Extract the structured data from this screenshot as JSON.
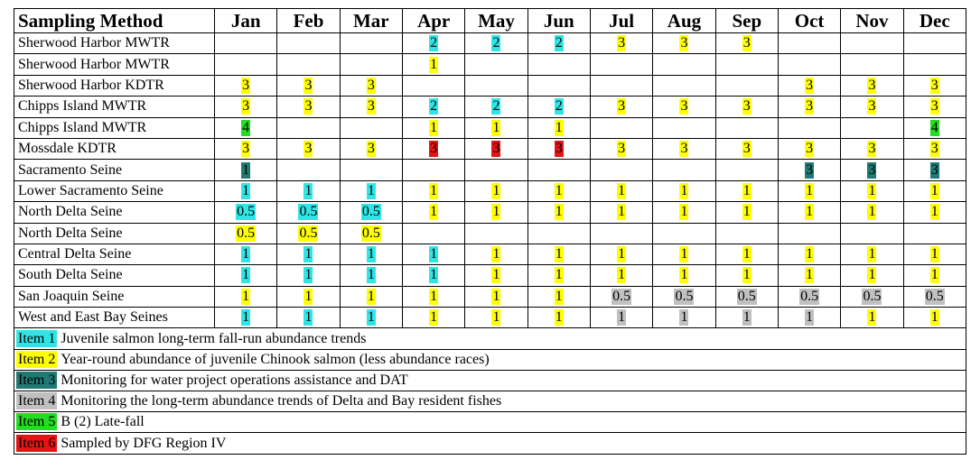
{
  "colors": {
    "1": "#2ee6e6",
    "2": "#ffff00",
    "3": "#1f7a74",
    "4": "#c0c0c0",
    "5": "#22dd22",
    "6": "#e61515"
  },
  "header": {
    "method": "Sampling Method",
    "months": [
      "Jan",
      "Feb",
      "Mar",
      "Apr",
      "May",
      "Jun",
      "Jul",
      "Aug",
      "Sep",
      "Oct",
      "Nov",
      "Dec"
    ]
  },
  "rows": [
    {
      "method": "Sherwood Harbor MWTR",
      "cells": [
        null,
        null,
        null,
        {
          "v": "2",
          "c": 1
        },
        {
          "v": "2",
          "c": 1
        },
        {
          "v": "2",
          "c": 1
        },
        {
          "v": "3",
          "c": 2
        },
        {
          "v": "3",
          "c": 2
        },
        {
          "v": "3",
          "c": 2
        },
        null,
        null,
        null
      ]
    },
    {
      "method": "Sherwood Harbor MWTR",
      "cells": [
        null,
        null,
        null,
        {
          "v": "1",
          "c": 2
        },
        null,
        null,
        null,
        null,
        null,
        null,
        null,
        null
      ]
    },
    {
      "method": "Sherwood Harbor KDTR",
      "cells": [
        {
          "v": "3",
          "c": 2
        },
        {
          "v": "3",
          "c": 2
        },
        {
          "v": "3",
          "c": 2
        },
        null,
        null,
        null,
        null,
        null,
        null,
        {
          "v": "3",
          "c": 2
        },
        {
          "v": "3",
          "c": 2
        },
        {
          "v": "3",
          "c": 2
        }
      ]
    },
    {
      "method": "Chipps Island MWTR",
      "cells": [
        {
          "v": "3",
          "c": 2
        },
        {
          "v": "3",
          "c": 2
        },
        {
          "v": "3",
          "c": 2
        },
        {
          "v": "2",
          "c": 1
        },
        {
          "v": "2",
          "c": 1
        },
        {
          "v": "2",
          "c": 1
        },
        {
          "v": "3",
          "c": 2
        },
        {
          "v": "3",
          "c": 2
        },
        {
          "v": "3",
          "c": 2
        },
        {
          "v": "3",
          "c": 2
        },
        {
          "v": "3",
          "c": 2
        },
        {
          "v": "3",
          "c": 2
        }
      ]
    },
    {
      "method": "Chipps Island MWTR",
      "cells": [
        {
          "v": "4",
          "c": 5
        },
        null,
        null,
        {
          "v": "1",
          "c": 2
        },
        {
          "v": "1",
          "c": 2
        },
        {
          "v": "1",
          "c": 2
        },
        null,
        null,
        null,
        null,
        null,
        {
          "v": "4",
          "c": 5
        }
      ]
    },
    {
      "method": "Mossdale KDTR",
      "cells": [
        {
          "v": "3",
          "c": 2
        },
        {
          "v": "3",
          "c": 2
        },
        {
          "v": "3",
          "c": 2
        },
        {
          "v": "3",
          "c": 6
        },
        {
          "v": "3",
          "c": 6
        },
        {
          "v": "3",
          "c": 6
        },
        {
          "v": "3",
          "c": 2
        },
        {
          "v": "3",
          "c": 2
        },
        {
          "v": "3",
          "c": 2
        },
        {
          "v": "3",
          "c": 2
        },
        {
          "v": "3",
          "c": 2
        },
        {
          "v": "3",
          "c": 2
        }
      ]
    },
    {
      "method": "Sacramento Seine",
      "cells": [
        {
          "v": "1",
          "c": 3
        },
        null,
        null,
        null,
        null,
        null,
        null,
        null,
        null,
        {
          "v": "3",
          "c": 3
        },
        {
          "v": "3",
          "c": 3
        },
        {
          "v": "3",
          "c": 3
        }
      ]
    },
    {
      "method": "Lower Sacramento Seine",
      "cells": [
        {
          "v": "1",
          "c": 1
        },
        {
          "v": "1",
          "c": 1
        },
        {
          "v": "1",
          "c": 1
        },
        {
          "v": "1",
          "c": 2
        },
        {
          "v": "1",
          "c": 2
        },
        {
          "v": "1",
          "c": 2
        },
        {
          "v": "1",
          "c": 2
        },
        {
          "v": "1",
          "c": 2
        },
        {
          "v": "1",
          "c": 2
        },
        {
          "v": "1",
          "c": 2
        },
        {
          "v": "1",
          "c": 2
        },
        {
          "v": "1",
          "c": 2
        }
      ]
    },
    {
      "method": "North Delta Seine",
      "cells": [
        {
          "v": "0.5",
          "c": 1
        },
        {
          "v": "0.5",
          "c": 1
        },
        {
          "v": "0.5",
          "c": 1
        },
        {
          "v": "1",
          "c": 2
        },
        {
          "v": "1",
          "c": 2
        },
        {
          "v": "1",
          "c": 2
        },
        {
          "v": "1",
          "c": 2
        },
        {
          "v": "1",
          "c": 2
        },
        {
          "v": "1",
          "c": 2
        },
        {
          "v": "1",
          "c": 2
        },
        {
          "v": "1",
          "c": 2
        },
        {
          "v": "1",
          "c": 2
        }
      ]
    },
    {
      "method": "North Delta Seine",
      "cells": [
        {
          "v": "0.5",
          "c": 2
        },
        {
          "v": "0.5",
          "c": 2
        },
        {
          "v": "0.5",
          "c": 2
        },
        null,
        null,
        null,
        null,
        null,
        null,
        null,
        null,
        null
      ]
    },
    {
      "method": "Central Delta Seine",
      "cells": [
        {
          "v": "1",
          "c": 1
        },
        {
          "v": "1",
          "c": 1
        },
        {
          "v": "1",
          "c": 1
        },
        {
          "v": "1",
          "c": 1
        },
        {
          "v": "1",
          "c": 2
        },
        {
          "v": "1",
          "c": 2
        },
        {
          "v": "1",
          "c": 2
        },
        {
          "v": "1",
          "c": 2
        },
        {
          "v": "1",
          "c": 2
        },
        {
          "v": "1",
          "c": 2
        },
        {
          "v": "1",
          "c": 2
        },
        {
          "v": "1",
          "c": 2
        }
      ]
    },
    {
      "method": "South Delta Seine",
      "cells": [
        {
          "v": "1",
          "c": 1
        },
        {
          "v": "1",
          "c": 1
        },
        {
          "v": "1",
          "c": 1
        },
        {
          "v": "1",
          "c": 1
        },
        {
          "v": "1",
          "c": 2
        },
        {
          "v": "1",
          "c": 2
        },
        {
          "v": "1",
          "c": 2
        },
        {
          "v": "1",
          "c": 2
        },
        {
          "v": "1",
          "c": 2
        },
        {
          "v": "1",
          "c": 2
        },
        {
          "v": "1",
          "c": 2
        },
        {
          "v": "1",
          "c": 2
        }
      ]
    },
    {
      "method": "San Joaquin Seine",
      "cells": [
        {
          "v": "1",
          "c": 2
        },
        {
          "v": "1",
          "c": 2
        },
        {
          "v": "1",
          "c": 2
        },
        {
          "v": "1",
          "c": 2
        },
        {
          "v": "1",
          "c": 2
        },
        {
          "v": "1",
          "c": 2
        },
        {
          "v": "0.5",
          "c": 4
        },
        {
          "v": "0.5",
          "c": 4
        },
        {
          "v": "0.5",
          "c": 4
        },
        {
          "v": "0.5",
          "c": 4
        },
        {
          "v": "0.5",
          "c": 4
        },
        {
          "v": "0.5",
          "c": 4
        }
      ]
    },
    {
      "method": "West and East Bay Seines",
      "cells": [
        {
          "v": "1",
          "c": 1
        },
        {
          "v": "1",
          "c": 1
        },
        {
          "v": "1",
          "c": 1
        },
        {
          "v": "1",
          "c": 2
        },
        {
          "v": "1",
          "c": 2
        },
        {
          "v": "1",
          "c": 2
        },
        {
          "v": "1",
          "c": 4
        },
        {
          "v": "1",
          "c": 4
        },
        {
          "v": "1",
          "c": 4
        },
        {
          "v": "1",
          "c": 4
        },
        {
          "v": "1",
          "c": 2
        },
        {
          "v": "1",
          "c": 2
        }
      ]
    }
  ],
  "legend": [
    {
      "item": "Item 1",
      "c": 1,
      "text": "Juvenile salmon long-term fall-run abundance trends"
    },
    {
      "item": "Item 2",
      "c": 2,
      "text": "Year-round abundance of juvenile Chinook salmon (less abundance races)"
    },
    {
      "item": "Item 3",
      "c": 3,
      "text": "Monitoring for water project operations assistance and DAT"
    },
    {
      "item": "Item 4",
      "c": 4,
      "text": "Monitoring the long-term abundance trends of Delta and Bay resident fishes"
    },
    {
      "item": "Item 5",
      "c": 5,
      "text": "B (2) Late-fall"
    },
    {
      "item": "Item 6",
      "c": 6,
      "text": "Sampled by DFG Region IV"
    }
  ]
}
